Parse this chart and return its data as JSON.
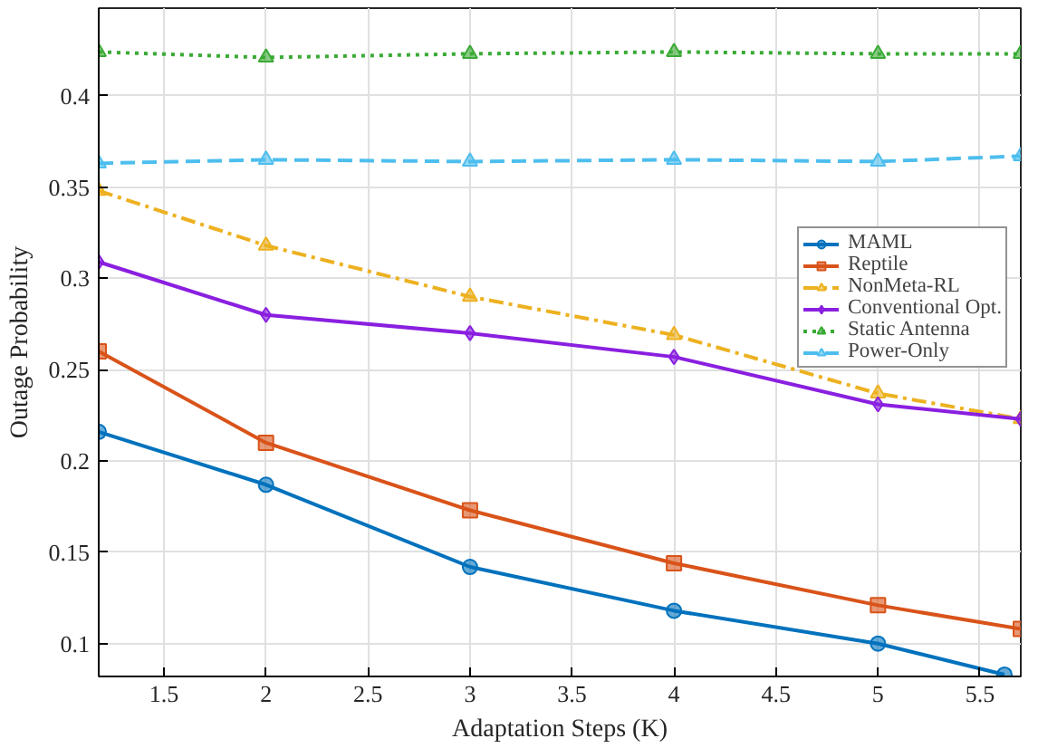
{
  "chart_data": {
    "type": "line",
    "xlabel": "Adaptation Steps (K)",
    "ylabel": "Outage Probability",
    "xlim": [
      1.18,
      5.7
    ],
    "ylim": [
      0.082,
      0.448
    ],
    "xticks": [
      1.5,
      2,
      2.5,
      3,
      3.5,
      4,
      4.5,
      5,
      5.5
    ],
    "yticks": [
      0.1,
      0.15,
      0.2,
      0.25,
      0.3,
      0.35,
      0.4
    ],
    "grid": true,
    "legend": "top right",
    "series": [
      {
        "name": "MAML",
        "color": "#0072bd",
        "marker": "circle",
        "line_style": "solid",
        "x": [
          1.18,
          2,
          3,
          4,
          5,
          5.62
        ],
        "values": [
          0.216,
          0.187,
          0.142,
          0.118,
          0.1,
          0.083
        ]
      },
      {
        "name": "Reptile",
        "color": "#d95319",
        "marker": "square",
        "line_style": "solid",
        "x": [
          1.18,
          2,
          3,
          4,
          5,
          5.7
        ],
        "values": [
          0.26,
          0.21,
          0.173,
          0.144,
          0.121,
          0.108
        ]
      },
      {
        "name": "NonMeta-RL",
        "color": "#edb120",
        "marker": "triangle",
        "line_style": "dashdot",
        "x": [
          1.18,
          2,
          3,
          4,
          5,
          5.7
        ],
        "values": [
          0.348,
          0.318,
          0.29,
          0.269,
          0.237,
          0.223
        ]
      },
      {
        "name": "Conventional Opt.",
        "color": "#8a1fe0",
        "marker": "diamond",
        "line_style": "solid",
        "x": [
          1.18,
          2,
          3,
          4,
          5,
          5.7
        ],
        "values": [
          0.309,
          0.28,
          0.27,
          0.257,
          0.231,
          0.223
        ]
      },
      {
        "name": "Static Antenna",
        "color": "#3aaa35",
        "marker": "triangle",
        "line_style": "dotted",
        "x": [
          1.18,
          2,
          3,
          4,
          5,
          5.7
        ],
        "values": [
          0.424,
          0.421,
          0.423,
          0.424,
          0.423,
          0.423
        ]
      },
      {
        "name": "Power-Only",
        "color": "#4dbeee",
        "marker": "triangle",
        "line_style": "dashed",
        "x": [
          1.18,
          2,
          3,
          4,
          5,
          5.7
        ],
        "values": [
          0.363,
          0.365,
          0.364,
          0.365,
          0.364,
          0.367
        ]
      }
    ]
  }
}
